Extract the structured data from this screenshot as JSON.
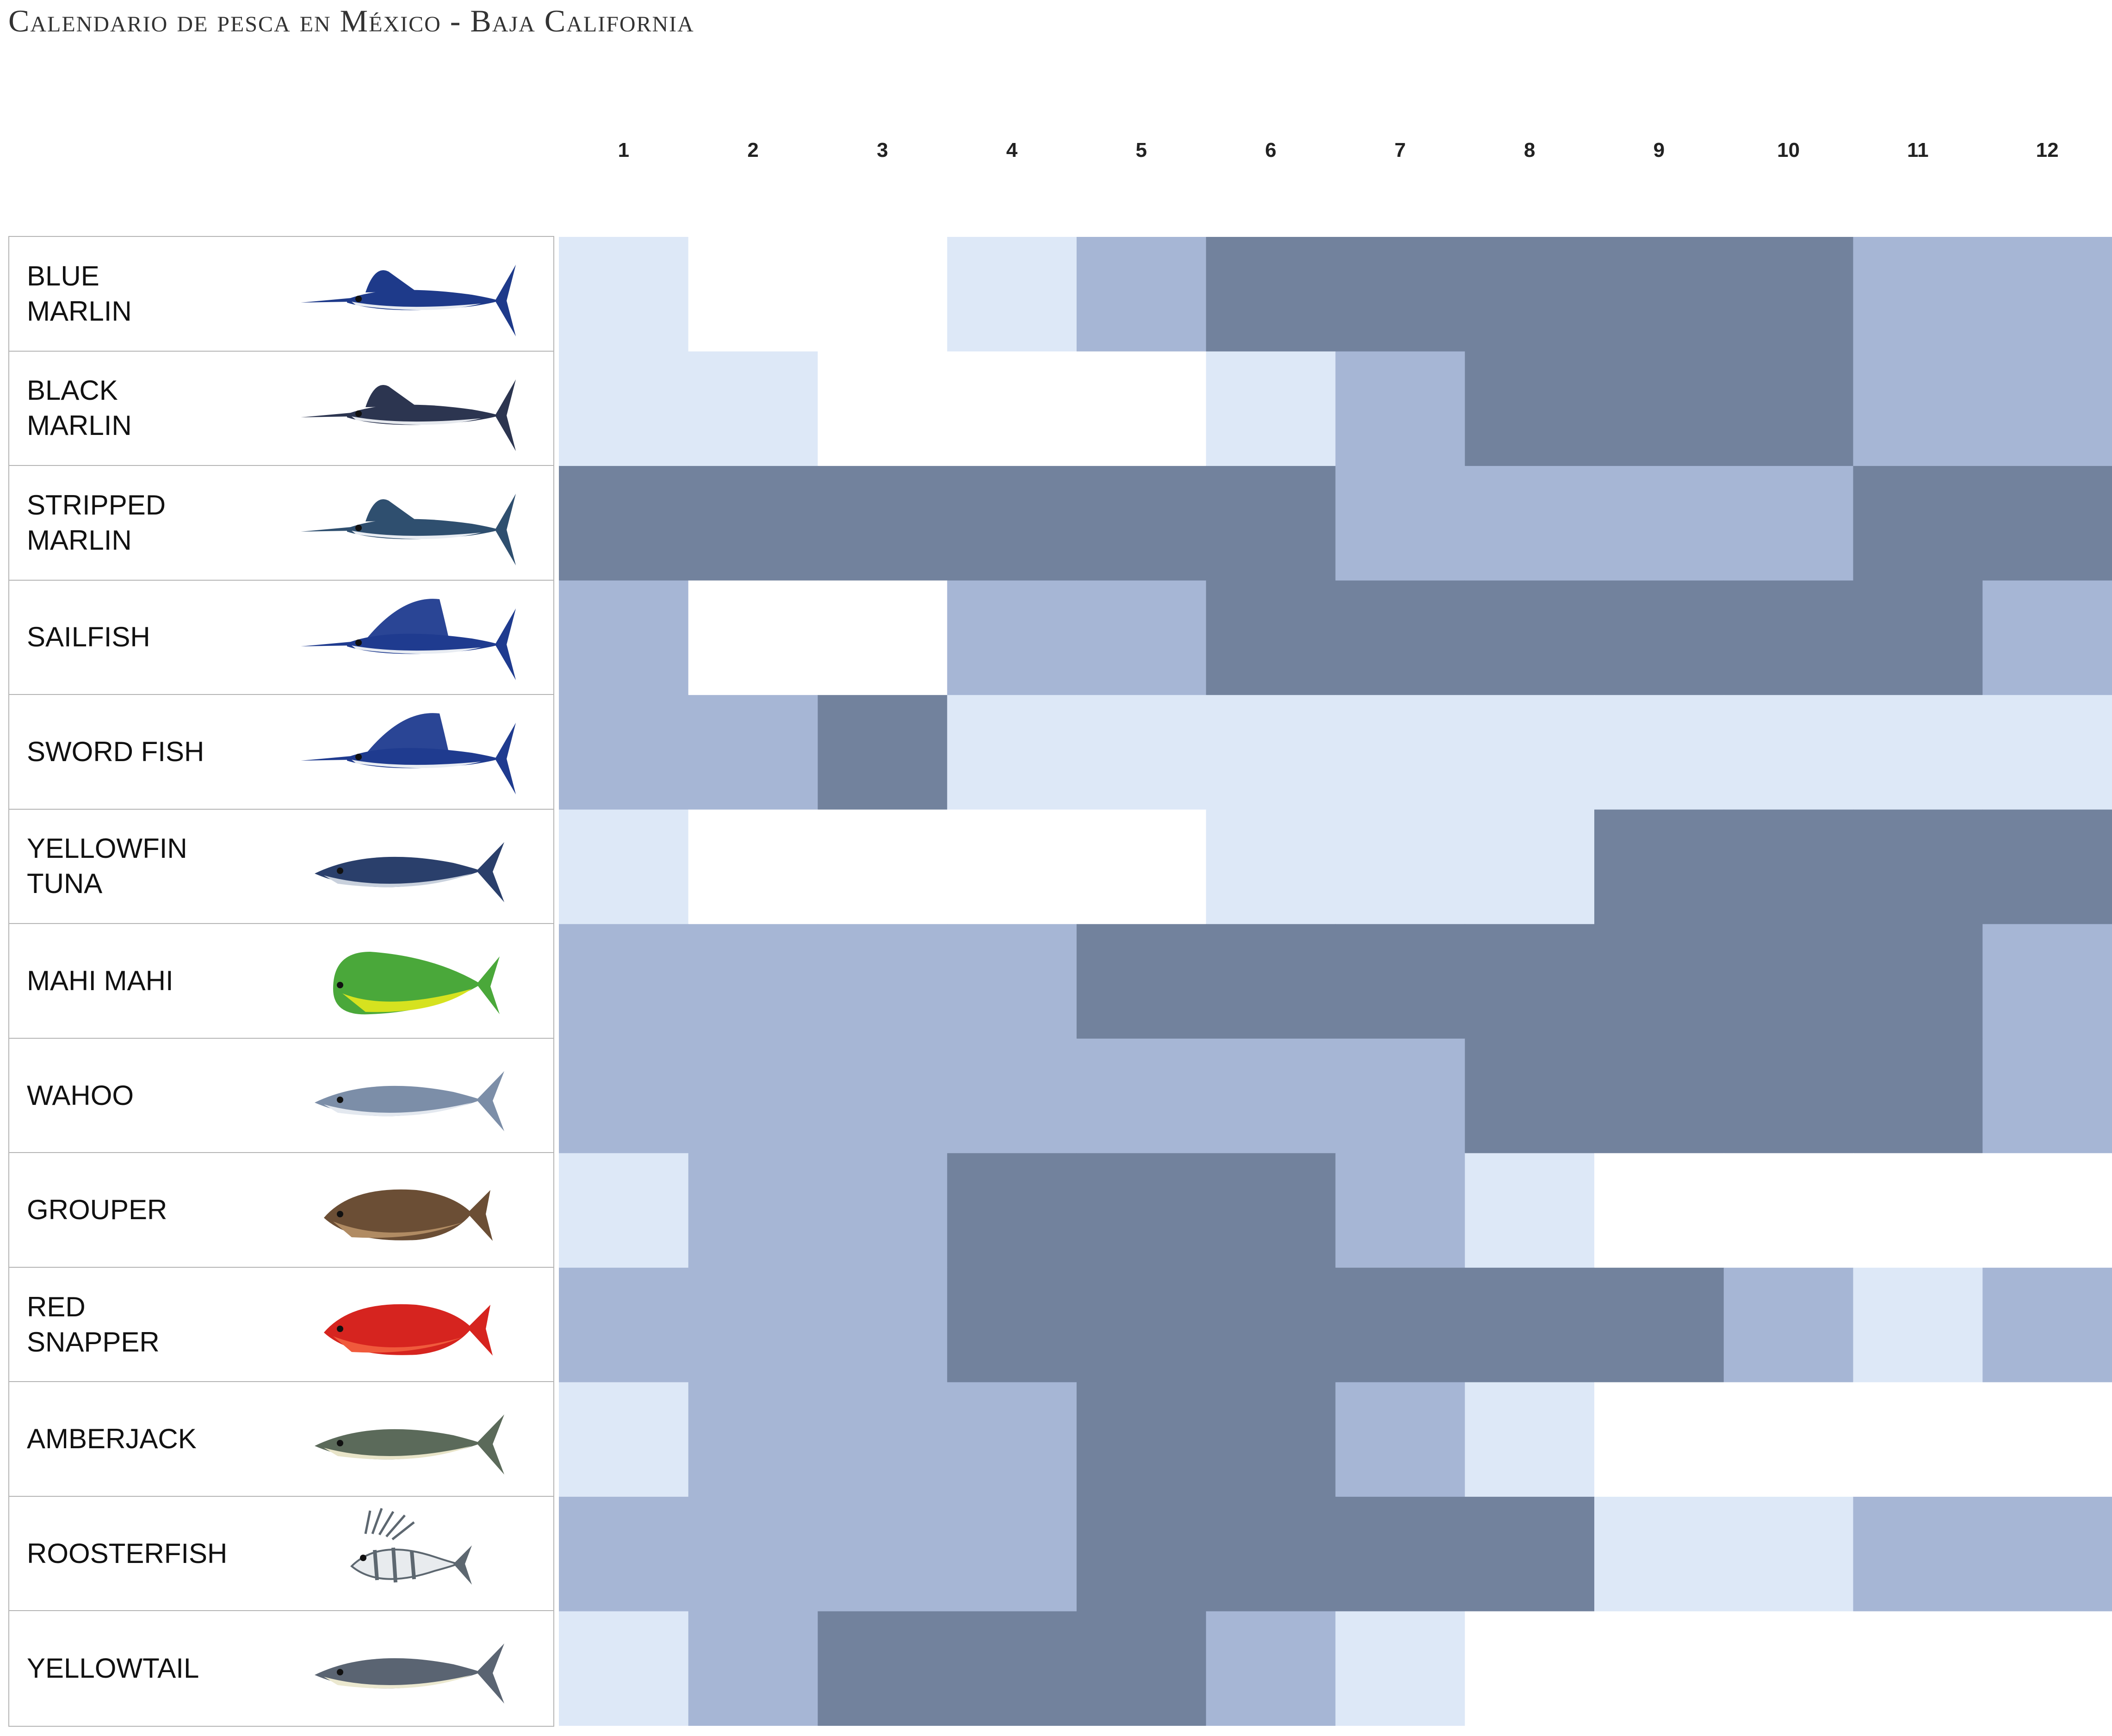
{
  "title": "Calendario de pesca en México - Baja California",
  "colors": {
    "level_0": "#ffffff",
    "level_1": "#dde8f7",
    "level_2": "#a6b6d5",
    "level_3": "#72829d"
  },
  "chart_data": {
    "type": "heatmap",
    "title": "Calendario de pesca en México - Baja California",
    "x": [
      "1",
      "2",
      "3",
      "4",
      "5",
      "6",
      "7",
      "8",
      "9",
      "10",
      "11",
      "12"
    ],
    "y": [
      "BLUE\nMARLIN",
      "BLACK\nMARLIN",
      "STRIPPED\nMARLIN",
      "SAILFISH",
      "SWORD FISH",
      "YELLOWFIN\nTUNA",
      "MAHI MAHI",
      "WAHOO",
      "GROUPER",
      "RED\nSNAPPER",
      "AMBERJACK",
      "ROOSTERFISH",
      "YELLOWTAIL"
    ],
    "scale": "0 = none, 1 = light, 2 = medium, 3 = dark",
    "values": [
      [
        1,
        0,
        0,
        1,
        2,
        3,
        3,
        3,
        3,
        3,
        2,
        2
      ],
      [
        1,
        1,
        0,
        0,
        0,
        1,
        2,
        3,
        3,
        3,
        2,
        2
      ],
      [
        3,
        3,
        3,
        3,
        3,
        3,
        2,
        2,
        2,
        2,
        3,
        3
      ],
      [
        2,
        0,
        0,
        2,
        2,
        3,
        3,
        3,
        3,
        3,
        3,
        2
      ],
      [
        2,
        2,
        3,
        1,
        1,
        1,
        1,
        1,
        1,
        1,
        1,
        1
      ],
      [
        1,
        0,
        0,
        0,
        0,
        1,
        1,
        1,
        3,
        3,
        3,
        3
      ],
      [
        2,
        2,
        2,
        2,
        3,
        3,
        3,
        3,
        3,
        3,
        3,
        2
      ],
      [
        2,
        2,
        2,
        2,
        2,
        2,
        2,
        3,
        3,
        3,
        3,
        2
      ],
      [
        1,
        2,
        2,
        3,
        3,
        3,
        2,
        1,
        0,
        0,
        0,
        0
      ],
      [
        2,
        2,
        2,
        3,
        3,
        3,
        3,
        3,
        3,
        2,
        1,
        2
      ],
      [
        1,
        2,
        2,
        2,
        3,
        3,
        2,
        1,
        0,
        0,
        0,
        0
      ],
      [
        2,
        2,
        2,
        2,
        3,
        3,
        3,
        3,
        1,
        1,
        2,
        2
      ],
      [
        1,
        2,
        3,
        3,
        3,
        2,
        1,
        0,
        0,
        0,
        0,
        0
      ]
    ]
  },
  "fish_icons": [
    {
      "icon": "blue-marlin-icon",
      "body": "#1e3a8a",
      "belly": "#e8ecf2"
    },
    {
      "icon": "black-marlin-icon",
      "body": "#2c3550",
      "belly": "#e6e9ee"
    },
    {
      "icon": "striped-marlin-icon",
      "body": "#2f4f6f",
      "belly": "#e8ecf2"
    },
    {
      "icon": "sailfish-icon",
      "body": "#1f3b8f",
      "belly": "#e8ecf2"
    },
    {
      "icon": "swordfish-icon",
      "body": "#1f3b8f",
      "belly": "#e8ecf2"
    },
    {
      "icon": "yellowfin-tuna-icon",
      "body": "#2a3f6b",
      "belly": "#c8d0dc"
    },
    {
      "icon": "mahi-mahi-icon",
      "body": "#4aa83a",
      "belly": "#d6e21f"
    },
    {
      "icon": "wahoo-icon",
      "body": "#7c8ea8",
      "belly": "#e3e8ef"
    },
    {
      "icon": "grouper-icon",
      "body": "#6b4e35",
      "belly": "#b08b63"
    },
    {
      "icon": "red-snapper-icon",
      "body": "#d6241f",
      "belly": "#f05a3c"
    },
    {
      "icon": "amberjack-icon",
      "body": "#5b6a5a",
      "belly": "#e8e4c8"
    },
    {
      "icon": "roosterfish-icon",
      "body": "#5d6770",
      "belly": "#e8ebee"
    },
    {
      "icon": "yellowtail-icon",
      "body": "#5a6472",
      "belly": "#ebe8cf"
    }
  ]
}
